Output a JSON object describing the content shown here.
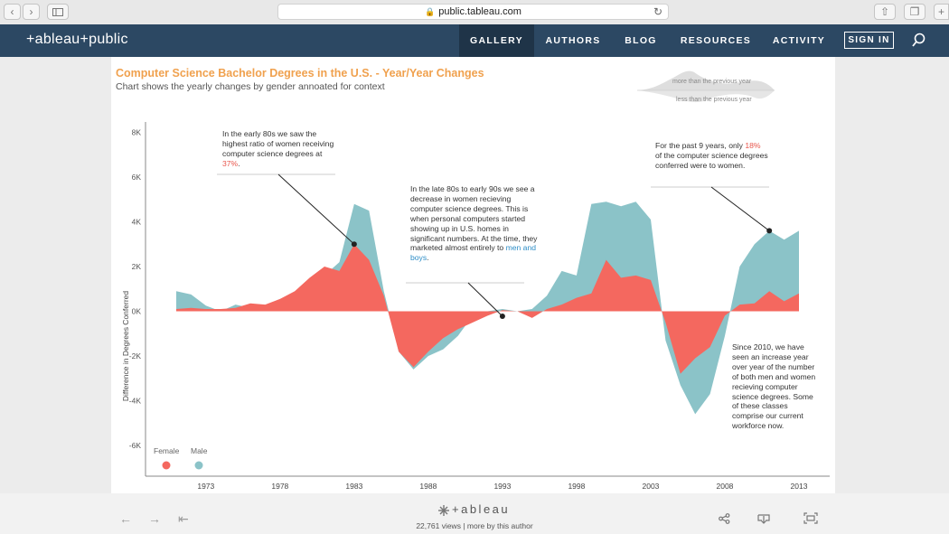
{
  "browser": {
    "url": "public.tableau.com"
  },
  "nav": {
    "logo": "+ableau+public",
    "items": [
      "GALLERY",
      "AUTHORS",
      "BLOG",
      "RESOURCES",
      "ACTIVITY"
    ],
    "active": "GALLERY",
    "signin": "SIGN IN"
  },
  "viz": {
    "title": "Computer Science Bachelor Degrees in the U.S. - Year/Year Changes",
    "subtitle": "Chart shows the yearly changes by gender annoated for context",
    "legend_more": "more than the previous year",
    "legend_less": "less than the previous year",
    "female_label": "Female",
    "male_label": "Male",
    "annotations": {
      "a1": {
        "text": "In the early 80s we saw the highest ratio of women receiving computer science degrees at ",
        "highlight": "37%",
        "end": "."
      },
      "a2": {
        "text": "In the late 80s to early 90s we see a decrease in women recieving computer science degrees. This is when personal computers started showing up in U.S. homes in significant numbers. At the time, they marketed almost entirely to ",
        "highlight": "men and boys",
        "end": "."
      },
      "a3": {
        "text": "For the past 9 years, only ",
        "highlight": "18%",
        "end": " of the computer science degrees conferred were to women."
      },
      "a4": {
        "text": "Since 2010, we have seen an increase year over year of the number of both men and women recieving computer science degrees. Some of these classes comprise our current workforce now."
      }
    }
  },
  "chart_data": {
    "type": "area",
    "ylabel": "Difference in Degrees Conferred",
    "ylim": [
      -7200,
      8600
    ],
    "yticks": [
      -6000,
      -4000,
      -2000,
      0,
      2000,
      4000,
      6000,
      8000
    ],
    "ytick_labels": [
      "-6K",
      "-4K",
      "-2K",
      "0K",
      "2K",
      "4K",
      "6K",
      "8K"
    ],
    "xticks": [
      1973,
      1978,
      1983,
      1988,
      1993,
      1998,
      2003,
      2008,
      2013
    ],
    "x": [
      1971,
      1972,
      1973,
      1974,
      1975,
      1976,
      1977,
      1978,
      1979,
      1980,
      1981,
      1982,
      1983,
      1984,
      1985,
      1986,
      1987,
      1988,
      1989,
      1990,
      1991,
      1992,
      1993,
      1994,
      1995,
      1996,
      1997,
      1998,
      1999,
      2000,
      2001,
      2002,
      2003,
      2004,
      2005,
      2006,
      2007,
      2008,
      2009,
      2010,
      2011,
      2012,
      2013
    ],
    "series": [
      {
        "name": "Female",
        "color": "#f4685f",
        "values": [
          100,
          150,
          100,
          100,
          150,
          350,
          300,
          550,
          900,
          1500,
          2000,
          1800,
          3000,
          2300,
          700,
          -1800,
          -2500,
          -1800,
          -1200,
          -800,
          -500,
          -200,
          50,
          0,
          -300,
          100,
          300,
          600,
          800,
          2300,
          1500,
          1600,
          1400,
          -500,
          -2800,
          -2100,
          -1600,
          -200,
          300,
          350,
          900,
          450,
          800
        ]
      },
      {
        "name": "Male",
        "color": "#8bc3c8",
        "values": [
          900,
          750,
          250,
          0,
          300,
          150,
          250,
          550,
          600,
          1400,
          1600,
          2200,
          4800,
          4500,
          900,
          -1800,
          -2600,
          -2000,
          -1700,
          -1100,
          -200,
          0,
          100,
          0,
          100,
          700,
          1800,
          1600,
          4800,
          4900,
          4700,
          4900,
          4100,
          -1300,
          -3300,
          -4600,
          -3700,
          -1100,
          2000,
          3000,
          3600,
          3200,
          3600
        ]
      }
    ],
    "legend": {
      "position": "bottom-left"
    },
    "grid": false
  },
  "footer": {
    "brand": "+ableau",
    "views": "22,761 views",
    "more_link": "more by this author"
  }
}
